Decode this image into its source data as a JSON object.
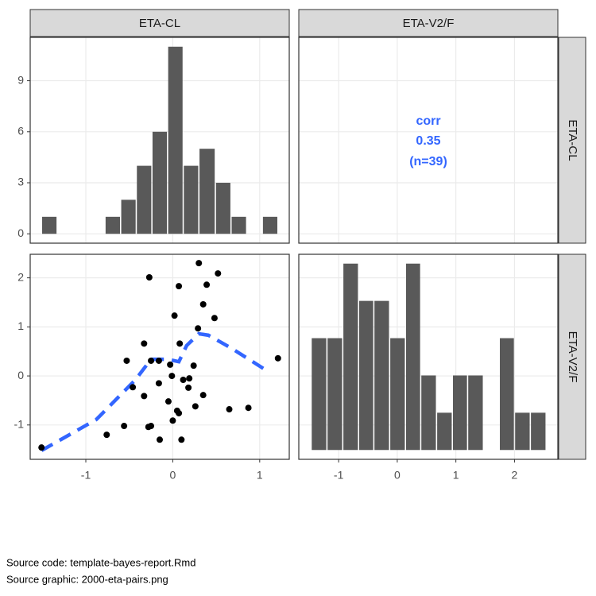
{
  "facets": {
    "columns": [
      "ETA-CL",
      "ETA-V2/F"
    ],
    "rows": [
      "ETA-CL",
      "ETA-V2/F"
    ]
  },
  "caption": [
    "Source code: template-bayes-report.Rmd",
    "Source graphic: 2000-eta-pairs.png"
  ],
  "chart_data": [
    {
      "type": "histogram",
      "column": 0,
      "row": 0,
      "color": "#595959",
      "bins": [
        -1.51,
        -1.33,
        -1.14,
        -0.96,
        -0.78,
        -0.6,
        -0.42,
        -0.24,
        -0.06,
        0.12,
        0.3,
        0.49,
        0.67,
        0.85,
        1.03,
        1.21
      ],
      "values": [
        1,
        0,
        0,
        0,
        1,
        2,
        4,
        6,
        11,
        4,
        5,
        3,
        1,
        0,
        1
      ],
      "xlim": [
        -1.64,
        1.34
      ],
      "ylim": [
        -0.55,
        11.55
      ],
      "yticks": [
        0,
        3,
        6,
        9
      ]
    },
    {
      "type": "text",
      "column": 1,
      "row": 0,
      "color": "#3366ff",
      "label": "corr",
      "value": 0.35,
      "n_label": "(n=39)",
      "xlim": [
        -1.68,
        2.74
      ],
      "ylim": [
        -0.55,
        11.55
      ]
    },
    {
      "type": "scatter",
      "column": 0,
      "row": 1,
      "color": "#000000",
      "x": [
        -1.51,
        -0.76,
        -0.27,
        -0.53,
        -0.46,
        -0.56,
        -0.33,
        -0.33,
        -0.28,
        -0.25,
        -0.25,
        -0.16,
        -0.16,
        -0.15,
        -0.05,
        -0.03,
        -0.01,
        0.0,
        0.02,
        0.05,
        0.07,
        0.07,
        0.08,
        0.1,
        0.12,
        0.18,
        0.19,
        0.24,
        0.26,
        0.3,
        0.29,
        0.35,
        0.35,
        0.39,
        0.48,
        0.52,
        0.65,
        0.87,
        1.21
      ],
      "y": [
        -1.46,
        -1.2,
        2.01,
        0.31,
        -0.23,
        -1.02,
        -0.41,
        0.66,
        -1.04,
        0.31,
        -1.02,
        0.31,
        -0.15,
        -1.3,
        -0.52,
        0.23,
        0.0,
        -0.91,
        1.23,
        -0.71,
        1.83,
        -0.76,
        0.66,
        -1.3,
        -0.08,
        -0.24,
        -0.05,
        0.21,
        -0.62,
        2.3,
        0.97,
        1.46,
        -0.39,
        1.86,
        1.18,
        2.09,
        -0.68,
        -0.65,
        0.36
      ],
      "smooth": {
        "color": "#3366ff",
        "x": [
          -1.51,
          -0.88,
          -0.43,
          -0.25,
          -0.06,
          0.07,
          0.16,
          0.3,
          0.41,
          0.67,
          1.08
        ],
        "y": [
          -1.52,
          -0.89,
          -0.08,
          0.34,
          0.34,
          0.29,
          0.62,
          0.86,
          0.83,
          0.57,
          0.11
        ]
      },
      "xlim": [
        -1.64,
        1.34
      ],
      "ylim": [
        -1.7,
        2.48
      ],
      "xticks": [
        -1,
        0,
        1
      ],
      "yticks": [
        -1,
        0,
        1,
        2
      ]
    },
    {
      "type": "histogram",
      "column": 1,
      "row": 1,
      "color": "#595959",
      "bins": [
        -1.47,
        -1.2,
        -0.93,
        -0.66,
        -0.4,
        -0.13,
        0.14,
        0.4,
        0.67,
        0.94,
        1.2,
        1.47,
        1.74,
        2.0,
        2.27,
        2.54
      ],
      "values": [
        3,
        3,
        5,
        4,
        4,
        3,
        5,
        2,
        1,
        2,
        2,
        0,
        3,
        1,
        1
      ],
      "xlim": [
        -1.68,
        2.74
      ],
      "ylim": [
        -0.25,
        5.25
      ],
      "xticks": [
        -1,
        0,
        1,
        2
      ]
    }
  ]
}
